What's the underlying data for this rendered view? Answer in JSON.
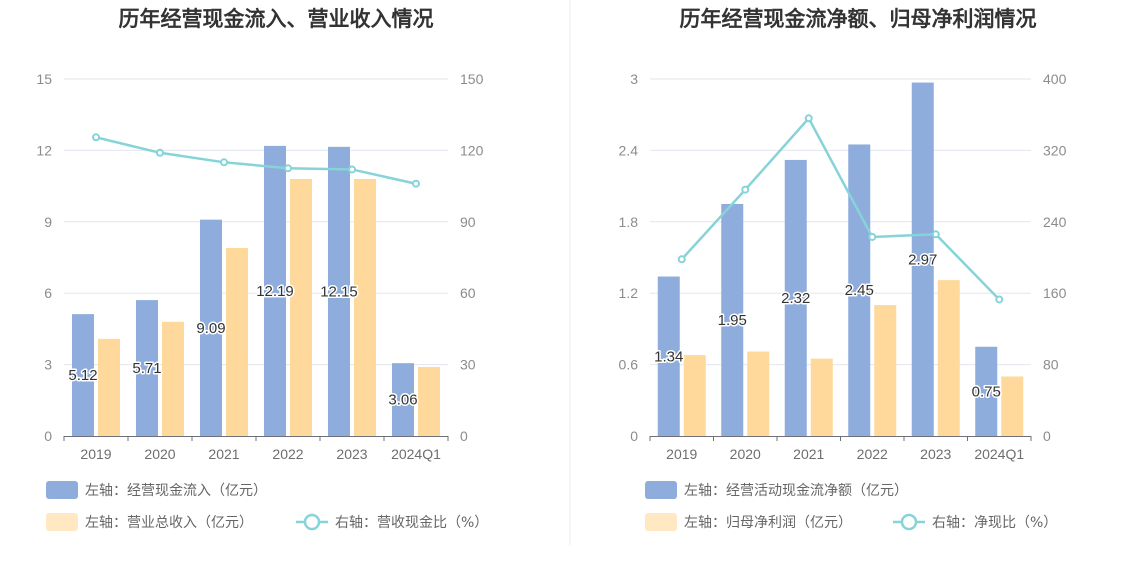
{
  "chart_data": [
    {
      "type": "bar",
      "title": "历年经营现金流入、营业收入情况",
      "categories": [
        "2019",
        "2020",
        "2021",
        "2022",
        "2023",
        "2024Q1"
      ],
      "left_axis": {
        "min": 0,
        "max": 15,
        "ticks": [
          "0",
          "3",
          "6",
          "9",
          "12",
          "15"
        ]
      },
      "right_axis": {
        "min": 0,
        "max": 150,
        "ticks": [
          "0",
          "30",
          "60",
          "90",
          "120",
          "150"
        ]
      },
      "grid": true,
      "legend_position": "bottom-left",
      "series": [
        {
          "name": "左轴：经营现金流入（亿元）",
          "type": "bar",
          "axis": "left",
          "color": "#8eacdc",
          "values": [
            5.12,
            5.71,
            9.09,
            12.19,
            12.15,
            3.06
          ],
          "labels": [
            "5.12",
            "5.71",
            "9.09",
            "12.19",
            "12.15",
            "3.06"
          ]
        },
        {
          "name": "左轴：营业总收入（亿元）",
          "type": "bar",
          "axis": "left",
          "color": "#ffd99c",
          "legend_color": "#ffe8c2",
          "values": [
            4.08,
            4.8,
            7.9,
            10.8,
            10.8,
            2.9
          ]
        },
        {
          "name": "右轴：营收现金比（%）",
          "type": "line",
          "axis": "right",
          "color": "#86d3d8",
          "values": [
            125.5,
            119.0,
            115.0,
            112.5,
            112.0,
            106.0
          ]
        }
      ]
    },
    {
      "type": "bar",
      "title": "历年经营现金流净额、归母净利润情况",
      "categories": [
        "2019",
        "2020",
        "2021",
        "2022",
        "2023",
        "2024Q1"
      ],
      "left_axis": {
        "min": 0,
        "max": 3,
        "ticks": [
          "0",
          "0.6",
          "1.2",
          "1.8",
          "2.4",
          "3"
        ]
      },
      "right_axis": {
        "min": 0,
        "max": 400,
        "ticks": [
          "0",
          "80",
          "160",
          "240",
          "320",
          "400"
        ]
      },
      "grid": true,
      "legend_position": "bottom-left",
      "series": [
        {
          "name": "左轴：经营活动现金流净额（亿元）",
          "type": "bar",
          "axis": "left",
          "color": "#8eacdc",
          "values": [
            1.34,
            1.95,
            2.32,
            2.45,
            2.97,
            0.75
          ],
          "labels": [
            "1.34",
            "1.95",
            "2.32",
            "2.45",
            "2.97",
            "0.75"
          ]
        },
        {
          "name": "左轴：归母净利润（亿元）",
          "type": "bar",
          "axis": "left",
          "color": "#ffd99c",
          "legend_color": "#ffe8c2",
          "values": [
            0.68,
            0.71,
            0.65,
            1.1,
            1.31,
            0.5
          ]
        },
        {
          "name": "右轴：净现比（%）",
          "type": "line",
          "axis": "right",
          "color": "#86d3d8",
          "values": [
            198,
            276,
            356,
            223,
            226,
            153
          ]
        }
      ]
    }
  ]
}
